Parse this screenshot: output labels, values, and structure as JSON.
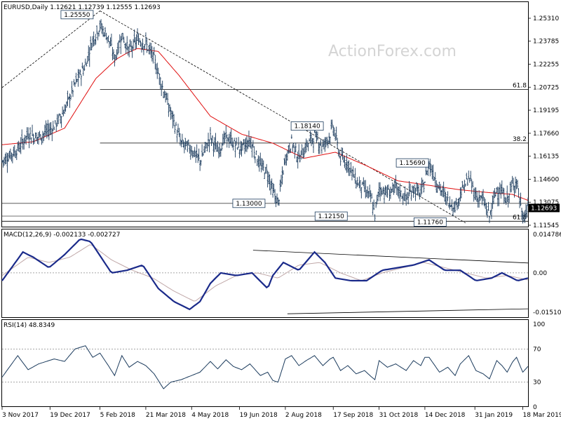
{
  "chart_data": [
    {
      "type": "line",
      "symbol": "EURUSD",
      "timeframe": "Daily",
      "header_text": "EURUSD,Daily  1.12621 1.12739 1.12555 1.12693",
      "ohlc": {
        "open": 1.12621,
        "high": 1.12739,
        "low": 1.12555,
        "close": 1.12693
      },
      "watermark": "ActionForex.com",
      "ylim": [
        1.1125,
        1.2625
      ],
      "y_ticks": [
        "1.25310",
        "1.23785",
        "1.22255",
        "1.20725",
        "1.19195",
        "1.17660",
        "1.16135",
        "1.14600",
        "1.13075",
        "1.11545"
      ],
      "current_price_label": "1.12693",
      "x_ticks": [
        "3 Nov 2017",
        "19 Dec 2017",
        "5 Feb 2018",
        "21 Mar 2018",
        "4 May 2018",
        "19 Jun 2018",
        "2 Aug 2018",
        "17 Sep 2018",
        "31 Oct 2018",
        "14 Dec 2018",
        "31 Jan 2019",
        "18 Mar 2019"
      ],
      "x_tick_days": [
        0,
        46,
        94,
        138,
        182,
        228,
        272,
        318,
        362,
        406,
        454,
        500
      ],
      "price_key_days": [
        0,
        15,
        25,
        35,
        50,
        60,
        70,
        80,
        87,
        94,
        102,
        108,
        115,
        122,
        130,
        138,
        146,
        155,
        162,
        172,
        182,
        190,
        200,
        207,
        215,
        222,
        230,
        238,
        248,
        255,
        260,
        265,
        272,
        278,
        285,
        292,
        300,
        308,
        315,
        318,
        325,
        332,
        340,
        348,
        355,
        358,
        362,
        370,
        378,
        388,
        395,
        402,
        406,
        410,
        420,
        428,
        435,
        440,
        448,
        455,
        462,
        468,
        475,
        480,
        485,
        490,
        494,
        500,
        505
      ],
      "price_key_values": [
        1.158,
        1.166,
        1.176,
        1.174,
        1.181,
        1.192,
        1.209,
        1.222,
        1.239,
        1.248,
        1.24,
        1.226,
        1.242,
        1.231,
        1.239,
        1.236,
        1.226,
        1.205,
        1.19,
        1.17,
        1.166,
        1.158,
        1.174,
        1.165,
        1.174,
        1.17,
        1.166,
        1.172,
        1.155,
        1.15,
        1.138,
        1.13,
        1.16,
        1.171,
        1.16,
        1.168,
        1.175,
        1.168,
        1.176,
        1.181,
        1.16,
        1.157,
        1.145,
        1.14,
        1.132,
        1.122,
        1.14,
        1.137,
        1.14,
        1.133,
        1.14,
        1.136,
        1.145,
        1.157,
        1.14,
        1.132,
        1.128,
        1.136,
        1.147,
        1.135,
        1.132,
        1.121,
        1.14,
        1.137,
        1.132,
        1.142,
        1.145,
        1.12,
        1.1269
      ],
      "ma_key_days": [
        0,
        30,
        60,
        90,
        110,
        120,
        130,
        150,
        170,
        200,
        230,
        260,
        290,
        320,
        350,
        380,
        410,
        440,
        470,
        490,
        505
      ],
      "ma_key_values": [
        1.169,
        1.171,
        1.18,
        1.213,
        1.226,
        1.23,
        1.233,
        1.231,
        1.215,
        1.188,
        1.176,
        1.17,
        1.16,
        1.164,
        1.155,
        1.145,
        1.142,
        1.139,
        1.137,
        1.136,
        1.132
      ],
      "fib_levels": [
        {
          "label": "61.8",
          "value": 1.2058,
          "start_day": 94
        },
        {
          "label": "38.2",
          "value": 1.1701,
          "start_day": 94
        },
        {
          "label": "61.8",
          "value": 1.1181,
          "start_day": 0
        }
      ],
      "horizontal_lines": [
        1.13,
        1.1215
      ],
      "annotations": [
        {
          "text": "1.25550",
          "day": 72,
          "value": 1.2555
        },
        {
          "text": "1.18140",
          "day": 293,
          "value": 1.1814
        },
        {
          "text": "1.15690",
          "day": 394,
          "value": 1.1569
        },
        {
          "text": "1.13000",
          "day": 237,
          "value": 1.13
        },
        {
          "text": "1.12150",
          "day": 316,
          "value": 1.1215
        },
        {
          "text": "1.11760",
          "day": 411,
          "value": 1.1176
        }
      ],
      "trendlines": [
        {
          "style": "dashed",
          "from": [
            0,
            1.207
          ],
          "to": [
            94,
            1.258
          ]
        },
        {
          "style": "dashed",
          "from": [
            94,
            1.258
          ],
          "to": [
            445,
            1.117
          ]
        }
      ]
    },
    {
      "type": "line",
      "header_text": "MACD(12,26,9) -0.002133 -0.002727",
      "macd_value": -0.002133,
      "signal_value": -0.002727,
      "ylim": [
        -0.0172,
        0.0158
      ],
      "y_ticks": [
        "0.014786",
        "0.00",
        "-0.015107"
      ],
      "macd_key_days": [
        0,
        20,
        30,
        45,
        60,
        75,
        85,
        95,
        105,
        120,
        135,
        150,
        165,
        180,
        190,
        200,
        210,
        225,
        240,
        255,
        260,
        270,
        285,
        300,
        310,
        320,
        335,
        350,
        365,
        380,
        395,
        410,
        425,
        440,
        455,
        470,
        480,
        495,
        505
      ],
      "macd_key_values": [
        -0.003,
        0.008,
        0.006,
        0.002,
        0.007,
        0.013,
        0.012,
        0.006,
        0.0,
        0.001,
        0.003,
        -0.006,
        -0.011,
        -0.014,
        -0.011,
        -0.004,
        0.0,
        -0.001,
        0.0,
        -0.006,
        -0.001,
        0.004,
        0.001,
        0.008,
        0.004,
        -0.002,
        -0.003,
        -0.003,
        0.001,
        0.002,
        0.003,
        0.005,
        0.001,
        0.001,
        -0.003,
        -0.002,
        0.0,
        -0.003,
        -0.002
      ],
      "signal_key_days": [
        0,
        25,
        45,
        65,
        85,
        105,
        125,
        145,
        165,
        185,
        205,
        225,
        245,
        265,
        285,
        305,
        325,
        345,
        365,
        385,
        405,
        425,
        445,
        465,
        485,
        505
      ],
      "signal_key_values": [
        -0.001,
        0.006,
        0.004,
        0.006,
        0.011,
        0.005,
        0.001,
        -0.002,
        -0.007,
        -0.011,
        -0.005,
        -0.001,
        0.0,
        -0.002,
        0.003,
        0.004,
        0.0,
        -0.003,
        0.0,
        0.002,
        0.004,
        0.002,
        0.0,
        -0.002,
        -0.001,
        -0.0027
      ],
      "trendlines": [
        {
          "style": "solid",
          "from": [
            241,
            0.0087
          ],
          "to": [
            505,
            0.0038
          ]
        },
        {
          "style": "solid",
          "from": [
            274,
            -0.0157
          ],
          "to": [
            505,
            -0.0138
          ]
        }
      ]
    },
    {
      "type": "line",
      "header_text": "RSI(14) 48.8349",
      "rsi_value": 48.8349,
      "ylim": [
        0,
        100
      ],
      "y_ticks": [
        "100",
        "70",
        "30",
        "0"
      ],
      "levels": [
        70,
        30
      ],
      "rsi_key_days": [
        0,
        15,
        25,
        35,
        50,
        60,
        70,
        80,
        87,
        94,
        102,
        108,
        115,
        122,
        130,
        138,
        146,
        155,
        162,
        172,
        182,
        190,
        200,
        207,
        215,
        222,
        230,
        238,
        248,
        255,
        260,
        265,
        272,
        278,
        285,
        292,
        300,
        308,
        315,
        318,
        325,
        332,
        340,
        348,
        355,
        358,
        362,
        370,
        378,
        388,
        395,
        402,
        406,
        410,
        420,
        428,
        435,
        440,
        448,
        455,
        462,
        468,
        475,
        480,
        485,
        490,
        494,
        500,
        505
      ],
      "rsi_key_values": [
        36,
        62,
        45,
        52,
        58,
        55,
        70,
        74,
        60,
        65,
        50,
        38,
        62,
        48,
        55,
        50,
        40,
        22,
        30,
        33,
        38,
        42,
        55,
        46,
        57,
        49,
        45,
        52,
        38,
        42,
        32,
        30,
        58,
        62,
        50,
        56,
        62,
        50,
        58,
        60,
        44,
        50,
        40,
        44,
        36,
        33,
        56,
        48,
        52,
        44,
        56,
        50,
        60,
        60,
        42,
        48,
        38,
        52,
        62,
        44,
        40,
        34,
        56,
        50,
        42,
        54,
        60,
        42,
        49
      ]
    }
  ]
}
